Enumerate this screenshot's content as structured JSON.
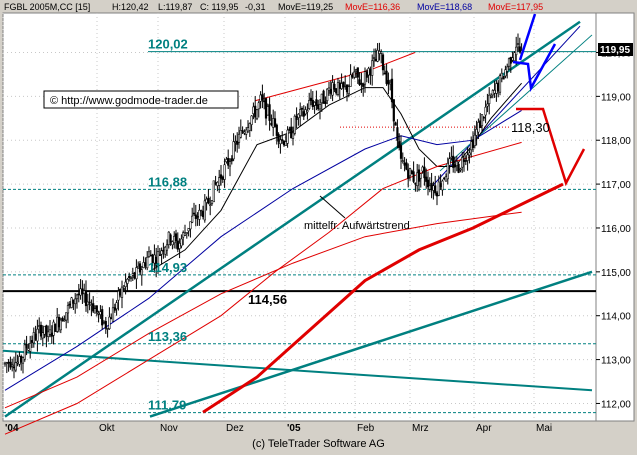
{
  "header": {
    "symbol": "FGBL 2005M,CC [15]",
    "high": "H:120,42",
    "low": "L:119,87",
    "close": "C: 119,95",
    "change": "-0,31",
    "ma1": "MovE=119,25",
    "ma2": "MovE=116,36",
    "ma3": "MovE=118,68",
    "ma4": "MovE=117,95"
  },
  "watermark": "© http://www.godmode-trader.de",
  "footer": "(c) TeleTrader Software AG",
  "colors": {
    "background": "#ffffff",
    "frame": "#d4d0c8",
    "teal": "#008080",
    "red": "#e00000",
    "blue": "#0000ff",
    "navy": "#000080",
    "ma1": "#000000",
    "ma2": "#e00000",
    "ma3": "#0000a0",
    "ma4": "#e00000"
  },
  "chart_data": {
    "type": "candlestick",
    "ylim": [
      111.6,
      120.9
    ],
    "yaxis_ticks": [
      "112,00",
      "113,00",
      "114,00",
      "115,00",
      "116,00",
      "117,00",
      "118,00",
      "119,00",
      "120,00"
    ],
    "xaxis_ticks": [
      "'04",
      "Okt",
      "Nov",
      "Dez",
      "'05",
      "Feb",
      "Mrz",
      "Apr",
      "Mai"
    ],
    "last_price_label": "119,95",
    "horizontal_levels": [
      {
        "value": 120.02,
        "label": "120,02",
        "style": "teal-solid"
      },
      {
        "value": 118.3,
        "label": "118,30",
        "style": "red-dotted"
      },
      {
        "value": 116.88,
        "label": "116,88",
        "style": "teal-dashed"
      },
      {
        "value": 114.93,
        "label": "114,93",
        "style": "teal-dashed"
      },
      {
        "value": 114.56,
        "label": "114,56",
        "style": "black-bold"
      },
      {
        "value": 113.36,
        "label": "113,36",
        "style": "teal-dashed"
      },
      {
        "value": 111.79,
        "label": "111,79",
        "style": "teal-dashed"
      }
    ],
    "annotation": "mittelfr. Aufwärtstrend",
    "price_path": [
      [
        0,
        112.9
      ],
      [
        4,
        113.0
      ],
      [
        8,
        112.9
      ],
      [
        12,
        113.3
      ],
      [
        16,
        113.5
      ],
      [
        20,
        113.7
      ],
      [
        24,
        113.5
      ],
      [
        28,
        113.8
      ],
      [
        32,
        114.0
      ],
      [
        36,
        114.2
      ],
      [
        40,
        114.5
      ],
      [
        44,
        114.4
      ],
      [
        48,
        114.3
      ],
      [
        52,
        114.0
      ],
      [
        56,
        113.8
      ],
      [
        60,
        114.1
      ],
      [
        64,
        114.5
      ],
      [
        68,
        114.8
      ],
      [
        72,
        114.9
      ],
      [
        76,
        115.1
      ],
      [
        80,
        115.4
      ],
      [
        84,
        115.3
      ],
      [
        88,
        115.6
      ],
      [
        92,
        115.8
      ],
      [
        96,
        115.6
      ],
      [
        100,
        115.9
      ],
      [
        104,
        116.2
      ],
      [
        108,
        116.3
      ],
      [
        112,
        116.5
      ],
      [
        116,
        116.9
      ],
      [
        120,
        117.2
      ],
      [
        124,
        117.5
      ],
      [
        128,
        117.9
      ],
      [
        132,
        118.2
      ],
      [
        136,
        118.5
      ],
      [
        140,
        118.7
      ],
      [
        142,
        118.9
      ],
      [
        146,
        118.6
      ],
      [
        150,
        118.3
      ],
      [
        154,
        118.0
      ],
      [
        158,
        118.1
      ],
      [
        162,
        118.5
      ],
      [
        166,
        118.6
      ],
      [
        170,
        118.9
      ],
      [
        174,
        118.8
      ],
      [
        178,
        119.0
      ],
      [
        182,
        119.3
      ],
      [
        186,
        119.1
      ],
      [
        190,
        119.2
      ],
      [
        194,
        119.5
      ],
      [
        198,
        119.3
      ],
      [
        202,
        119.6
      ],
      [
        206,
        119.8
      ],
      [
        208,
        120.0
      ],
      [
        210,
        119.7
      ],
      [
        214,
        119.2
      ],
      [
        216,
        118.6
      ],
      [
        218,
        117.9
      ],
      [
        220,
        117.5
      ],
      [
        224,
        117.3
      ],
      [
        228,
        117.1
      ],
      [
        232,
        117.3
      ],
      [
        236,
        117.0
      ],
      [
        240,
        116.9
      ],
      [
        244,
        117.2
      ],
      [
        248,
        117.5
      ],
      [
        252,
        117.4
      ],
      [
        256,
        117.7
      ],
      [
        260,
        118.0
      ],
      [
        264,
        118.4
      ],
      [
        268,
        118.8
      ],
      [
        272,
        119.1
      ],
      [
        276,
        119.4
      ],
      [
        280,
        119.8
      ],
      [
        284,
        120.2
      ],
      [
        287,
        119.95
      ]
    ],
    "moving_averages": [
      {
        "name": "MovE=119,25",
        "color": "#000000",
        "path": [
          [
            80,
            115.0
          ],
          [
            100,
            115.5
          ],
          [
            120,
            116.4
          ],
          [
            140,
            117.9
          ],
          [
            160,
            118.2
          ],
          [
            180,
            118.8
          ],
          [
            200,
            119.2
          ],
          [
            210,
            119.2
          ],
          [
            220,
            118.6
          ],
          [
            230,
            117.8
          ],
          [
            240,
            117.4
          ],
          [
            250,
            117.4
          ],
          [
            260,
            117.9
          ],
          [
            270,
            118.5
          ],
          [
            287,
            119.3
          ]
        ]
      },
      {
        "name": "MovE=116,36",
        "color": "#e00000",
        "path": [
          [
            0,
            111.9
          ],
          [
            40,
            112.6
          ],
          [
            80,
            113.6
          ],
          [
            120,
            114.5
          ],
          [
            160,
            115.2
          ],
          [
            200,
            115.8
          ],
          [
            240,
            116.1
          ],
          [
            287,
            116.36
          ]
        ]
      },
      {
        "name": "MovE=118,68",
        "color": "#0000a0",
        "path": [
          [
            0,
            112.3
          ],
          [
            40,
            113.3
          ],
          [
            80,
            114.4
          ],
          [
            120,
            115.8
          ],
          [
            160,
            116.9
          ],
          [
            200,
            117.8
          ],
          [
            220,
            118.1
          ],
          [
            240,
            117.9
          ],
          [
            260,
            118.0
          ],
          [
            287,
            118.68
          ]
        ]
      },
      {
        "name": "MovE=117,95",
        "color": "#e00000",
        "path": [
          [
            0,
            111.3
          ],
          [
            40,
            112.0
          ],
          [
            80,
            113.0
          ],
          [
            120,
            114.0
          ],
          [
            150,
            115.0
          ],
          [
            180,
            115.9
          ],
          [
            210,
            116.9
          ],
          [
            240,
            117.4
          ],
          [
            287,
            117.95
          ]
        ]
      }
    ],
    "heavy_red_ma": [
      [
        110,
        111.8
      ],
      [
        140,
        112.6
      ],
      [
        170,
        113.7
      ],
      [
        200,
        114.8
      ],
      [
        230,
        115.5
      ],
      [
        260,
        116.0
      ],
      [
        290,
        116.6
      ],
      [
        310,
        117.0
      ]
    ]
  }
}
